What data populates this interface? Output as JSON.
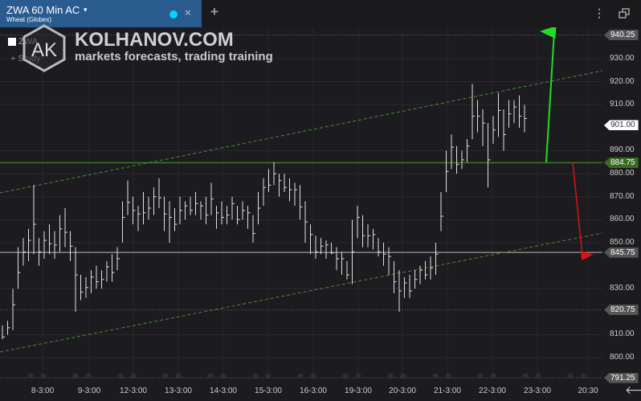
{
  "tab": {
    "symbol": "ZWA 60 Min AC",
    "subtitle": "Wheat (Globex)",
    "caret": "▾",
    "close": "×"
  },
  "toolbar": {
    "add_tab": "+",
    "menu": "⋮",
    "window_icon": "restore-window-icon"
  },
  "watermark": {
    "logo": "AK",
    "title": "KOLHANOV.COM",
    "tagline": "markets forecasts, trading training"
  },
  "legend": {
    "symbol": "ZWA",
    "add_study": "+ Study"
  },
  "colors": {
    "background": "#1c1c20",
    "tab": "#2a5b8f",
    "bars": "#e0e0e0",
    "support": "#3a7a20",
    "channel": "#4a8a30",
    "up_arrow": "#22dd22",
    "down_arrow": "#dd1111",
    "current_tag": "#ffffff"
  },
  "chart_data": {
    "type": "ohlc-bar",
    "ylim": [
      791.25,
      940.25
    ],
    "price_labels": [
      "930.00",
      "920.00",
      "910.00",
      "890.00",
      "880.00",
      "870.00",
      "860.00",
      "850.00",
      "830.00",
      "810.00",
      "800.00"
    ],
    "price_values": [
      930,
      920,
      910,
      890,
      880,
      870,
      860,
      850,
      830,
      810,
      800
    ],
    "levels": [
      {
        "label": "940.25",
        "value": 940.25,
        "style": "dotted"
      },
      {
        "label": "884.75",
        "value": 884.75,
        "style": "solid-green"
      },
      {
        "label": "845.75",
        "value": 845.75,
        "style": "solid-gray"
      },
      {
        "label": "820.75",
        "value": 820.75,
        "style": "dotted"
      },
      {
        "label": "791.25",
        "value": 791.25,
        "style": "dotted"
      }
    ],
    "current_price": "901.00",
    "current_value": 901,
    "time_labels": [
      "8-3:00",
      "9-3:00",
      "12-3:00",
      "13-3:00",
      "14-3:00",
      "15-3:00",
      "16-3:00",
      "19-3:00",
      "20-3:00",
      "21-3:00",
      "22-3:00",
      "23-3:00",
      "20:30"
    ],
    "bars_low_high": [
      [
        808,
        814
      ],
      [
        810,
        816
      ],
      [
        812,
        830
      ],
      [
        830,
        848
      ],
      [
        840,
        852
      ],
      [
        842,
        856
      ],
      [
        845,
        875
      ],
      [
        840,
        852
      ],
      [
        843,
        855
      ],
      [
        845,
        858
      ],
      [
        843,
        855
      ],
      [
        846,
        862
      ],
      [
        848,
        865
      ],
      [
        842,
        855
      ],
      [
        820,
        848
      ],
      [
        825,
        836
      ],
      [
        826,
        835
      ],
      [
        828,
        838
      ],
      [
        830,
        840
      ],
      [
        830,
        838
      ],
      [
        833,
        842
      ],
      [
        833,
        845
      ],
      [
        838,
        848
      ],
      [
        850,
        868
      ],
      [
        862,
        877
      ],
      [
        858,
        870
      ],
      [
        855,
        866
      ],
      [
        858,
        872
      ],
      [
        860,
        870
      ],
      [
        862,
        874
      ],
      [
        865,
        878
      ],
      [
        855,
        870
      ],
      [
        850,
        868
      ],
      [
        855,
        865
      ],
      [
        858,
        870
      ],
      [
        860,
        868
      ],
      [
        862,
        870
      ],
      [
        862,
        872
      ],
      [
        860,
        868
      ],
      [
        858,
        870
      ],
      [
        862,
        876
      ],
      [
        856,
        866
      ],
      [
        858,
        868
      ],
      [
        858,
        866
      ],
      [
        860,
        870
      ],
      [
        858,
        866
      ],
      [
        860,
        868
      ],
      [
        856,
        866
      ],
      [
        850,
        862
      ],
      [
        858,
        872
      ],
      [
        866,
        878
      ],
      [
        872,
        882
      ],
      [
        875,
        885
      ],
      [
        870,
        880
      ],
      [
        872,
        880
      ],
      [
        868,
        878
      ],
      [
        866,
        876
      ],
      [
        860,
        875
      ],
      [
        850,
        868
      ],
      [
        845,
        858
      ],
      [
        843,
        853
      ],
      [
        845,
        852
      ],
      [
        843,
        851
      ],
      [
        845,
        850
      ],
      [
        838,
        848
      ],
      [
        836,
        846
      ],
      [
        834,
        842
      ],
      [
        832,
        860
      ],
      [
        852,
        866
      ],
      [
        848,
        862
      ],
      [
        848,
        858
      ],
      [
        847,
        856
      ],
      [
        844,
        852
      ],
      [
        840,
        850
      ],
      [
        836,
        848
      ],
      [
        828,
        842
      ],
      [
        820,
        838
      ],
      [
        826,
        835
      ],
      [
        826,
        836
      ],
      [
        830,
        838
      ],
      [
        832,
        840
      ],
      [
        834,
        842
      ],
      [
        834,
        844
      ],
      [
        836,
        850
      ],
      [
        855,
        872
      ],
      [
        872,
        890
      ],
      [
        882,
        897
      ],
      [
        880,
        892
      ],
      [
        882,
        890
      ],
      [
        885,
        895
      ],
      [
        895,
        919
      ],
      [
        898,
        912
      ],
      [
        892,
        908
      ],
      [
        874,
        902
      ],
      [
        893,
        905
      ],
      [
        896,
        915
      ],
      [
        890,
        908
      ],
      [
        900,
        912
      ],
      [
        902,
        912
      ],
      [
        900,
        914
      ],
      [
        898,
        910
      ]
    ]
  },
  "nav": {
    "back": "🡐"
  }
}
